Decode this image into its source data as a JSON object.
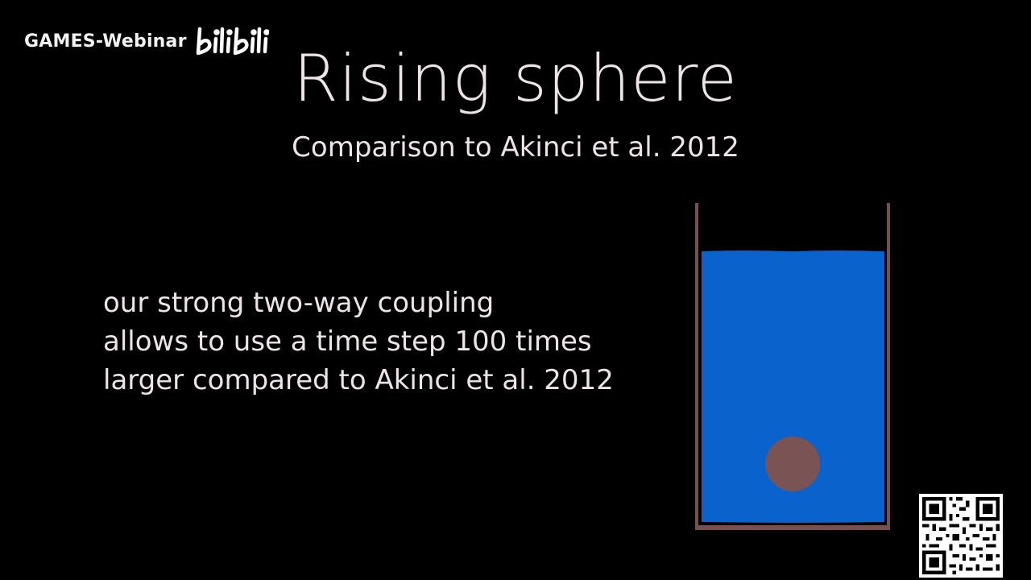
{
  "watermark": {
    "text": "GAMES-Webinar",
    "logo_text": "bilibili"
  },
  "slide": {
    "title": "Rising sphere",
    "subtitle": "Comparison to Akinci et al. 2012",
    "body_lines": [
      "our strong two-way coupling",
      "allows to use a time step 100 times",
      "larger compared to Akinci et al. 2012"
    ]
  },
  "colors": {
    "background": "#000000",
    "text": "#efe3ea",
    "container": "#7a4f50",
    "fluid": "#0a62cc",
    "sphere": "#7a5355"
  },
  "icons": {
    "logo": "bilibili-logo",
    "qr": "qr-code-icon"
  }
}
